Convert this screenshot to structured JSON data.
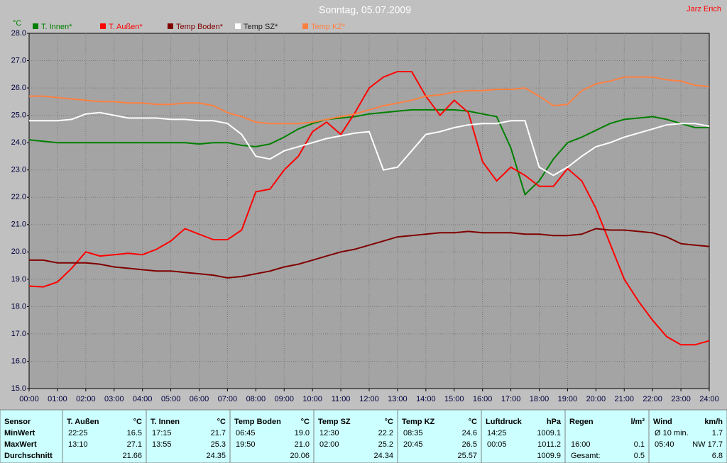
{
  "chart_data": {
    "type": "line",
    "title": "Sonntag, 05.07.2009",
    "author": "Jarz Erich",
    "y_label": "°C",
    "x": [
      0,
      0.5,
      1,
      1.5,
      2,
      2.5,
      3,
      3.5,
      4,
      4.5,
      5,
      5.5,
      6,
      6.5,
      7,
      7.5,
      8,
      8.5,
      9,
      9.5,
      10,
      10.5,
      11,
      11.5,
      12,
      12.5,
      13,
      13.5,
      14,
      14.5,
      15,
      15.5,
      16,
      16.5,
      17,
      17.5,
      18,
      18.5,
      19,
      19.5,
      20,
      20.5,
      21,
      21.5,
      22,
      22.5,
      23,
      23.5,
      24
    ],
    "series": [
      {
        "name": "T. Innen*",
        "color": "#008000",
        "values": [
          24.1,
          24.05,
          24.0,
          24.0,
          24.0,
          24.0,
          24.0,
          24.0,
          24.0,
          24.0,
          24.0,
          24.0,
          23.95,
          24.0,
          24.0,
          23.9,
          23.85,
          23.95,
          24.2,
          24.5,
          24.7,
          24.85,
          24.9,
          24.95,
          25.05,
          25.1,
          25.15,
          25.2,
          25.2,
          25.2,
          25.2,
          25.15,
          25.05,
          24.95,
          23.8,
          22.1,
          22.6,
          23.4,
          24.0,
          24.2,
          24.45,
          24.7,
          24.85,
          24.9,
          24.95,
          24.85,
          24.7,
          24.55,
          24.55
        ]
      },
      {
        "name": "T. Außen*",
        "color": "#ff0000",
        "values": [
          18.75,
          18.72,
          18.9,
          19.4,
          20.0,
          19.85,
          19.9,
          19.95,
          19.9,
          20.1,
          20.4,
          20.85,
          20.65,
          20.45,
          20.45,
          20.8,
          22.2,
          22.3,
          23.0,
          23.5,
          24.4,
          24.75,
          24.3,
          25.1,
          26.0,
          26.4,
          26.6,
          26.6,
          25.7,
          25.0,
          25.55,
          25.1,
          23.3,
          22.6,
          23.1,
          22.8,
          22.4,
          22.4,
          23.05,
          22.6,
          21.6,
          20.3,
          19.0,
          18.2,
          17.5,
          16.9,
          16.6,
          16.6,
          16.75
        ]
      },
      {
        "name": "Temp Boden*",
        "color": "#800000",
        "values": [
          19.7,
          19.7,
          19.6,
          19.6,
          19.6,
          19.55,
          19.45,
          19.4,
          19.35,
          19.3,
          19.3,
          19.25,
          19.2,
          19.15,
          19.05,
          19.1,
          19.2,
          19.3,
          19.45,
          19.55,
          19.7,
          19.85,
          20.0,
          20.1,
          20.25,
          20.4,
          20.55,
          20.6,
          20.65,
          20.7,
          20.7,
          20.75,
          20.7,
          20.7,
          20.7,
          20.65,
          20.65,
          20.6,
          20.6,
          20.65,
          20.85,
          20.8,
          20.8,
          20.75,
          20.7,
          20.55,
          20.3,
          20.25,
          20.2
        ]
      },
      {
        "name": "Temp SZ*",
        "color": "#ffffff",
        "values": [
          24.8,
          24.8,
          24.8,
          24.85,
          25.05,
          25.1,
          25.0,
          24.9,
          24.9,
          24.9,
          24.85,
          24.85,
          24.8,
          24.8,
          24.7,
          24.3,
          23.5,
          23.4,
          23.7,
          23.85,
          24.0,
          24.15,
          24.25,
          24.35,
          24.4,
          23.0,
          23.1,
          23.7,
          24.3,
          24.4,
          24.55,
          24.65,
          24.7,
          24.7,
          24.8,
          24.8,
          23.1,
          22.8,
          23.1,
          23.5,
          23.85,
          24.0,
          24.2,
          24.35,
          24.5,
          24.65,
          24.7,
          24.7,
          24.6
        ]
      },
      {
        "name": "Temp KZ*",
        "color": "#ff8040",
        "values": [
          25.7,
          25.7,
          25.65,
          25.6,
          25.55,
          25.5,
          25.5,
          25.45,
          25.45,
          25.4,
          25.4,
          25.45,
          25.45,
          25.35,
          25.1,
          24.95,
          24.75,
          24.7,
          24.7,
          24.7,
          24.75,
          24.85,
          24.95,
          25.05,
          25.2,
          25.35,
          25.45,
          25.55,
          25.7,
          25.75,
          25.85,
          25.9,
          25.9,
          25.95,
          25.95,
          26.0,
          25.7,
          25.35,
          25.4,
          25.9,
          26.15,
          26.25,
          26.4,
          26.4,
          26.4,
          26.3,
          26.25,
          26.1,
          26.05
        ]
      }
    ],
    "xlim": [
      0,
      24
    ],
    "xticks": [
      {
        "value": 0,
        "label": "00:00"
      },
      {
        "value": 1,
        "label": "01:00"
      },
      {
        "value": 2,
        "label": "02:00"
      },
      {
        "value": 3,
        "label": "03:00"
      },
      {
        "value": 4,
        "label": "04:00"
      },
      {
        "value": 5,
        "label": "05:00"
      },
      {
        "value": 6,
        "label": "06:00"
      },
      {
        "value": 7,
        "label": "07:00"
      },
      {
        "value": 8,
        "label": "08:00"
      },
      {
        "value": 9,
        "label": "09:00"
      },
      {
        "value": 10,
        "label": "10:00"
      },
      {
        "value": 11,
        "label": "11:00"
      },
      {
        "value": 12,
        "label": "12:00"
      },
      {
        "value": 13,
        "label": "13:00"
      },
      {
        "value": 14,
        "label": "14:00"
      },
      {
        "value": 15,
        "label": "15:00"
      },
      {
        "value": 16,
        "label": "16:00"
      },
      {
        "value": 17,
        "label": "17:00"
      },
      {
        "value": 18,
        "label": "18:00"
      },
      {
        "value": 19,
        "label": "19:00"
      },
      {
        "value": 20,
        "label": "20:00"
      },
      {
        "value": 21,
        "label": "21:00"
      },
      {
        "value": 22,
        "label": "22:00"
      },
      {
        "value": 23,
        "label": "23:00"
      },
      {
        "value": 24,
        "label": "24:00"
      }
    ],
    "ylim": [
      15,
      28
    ],
    "yticks": [
      {
        "value": 15,
        "label": "15.0"
      },
      {
        "value": 16,
        "label": "16.0"
      },
      {
        "value": 17,
        "label": "17.0"
      },
      {
        "value": 18,
        "label": "18.0"
      },
      {
        "value": 19,
        "label": "19.0"
      },
      {
        "value": 20,
        "label": "20.0"
      },
      {
        "value": 21,
        "label": "21.0"
      },
      {
        "value": 22,
        "label": "22.0"
      },
      {
        "value": 23,
        "label": "23.0"
      },
      {
        "value": 24,
        "label": "24.0"
      },
      {
        "value": 25,
        "label": "25.0"
      },
      {
        "value": 26,
        "label": "26.0"
      },
      {
        "value": 27,
        "label": "27.0"
      },
      {
        "value": 28,
        "label": "28.0"
      }
    ],
    "grid": true
  },
  "table": {
    "header": "Sensor",
    "row_labels": [
      "MinWert",
      "MaxWert",
      "Durchschnitt"
    ],
    "columns": [
      {
        "name": "T. Außen",
        "unit": "°C",
        "min": {
          "time": "22:25",
          "value": "16.5"
        },
        "max": {
          "time": "13:10",
          "value": "27.1"
        },
        "avg": {
          "value": "21.66"
        }
      },
      {
        "name": "T. Innen",
        "unit": "°C",
        "min": {
          "time": "17:15",
          "value": "21.7"
        },
        "max": {
          "time": "13:55",
          "value": "25.3"
        },
        "avg": {
          "value": "24.35"
        }
      },
      {
        "name": "Temp Boden",
        "unit": "°C",
        "min": {
          "time": "06:45",
          "value": "19.0"
        },
        "max": {
          "time": "19:50",
          "value": "21.0"
        },
        "avg": {
          "value": "20.06"
        }
      },
      {
        "name": "Temp SZ",
        "unit": "°C",
        "min": {
          "time": "12:30",
          "value": "22.2"
        },
        "max": {
          "time": "02:00",
          "value": "25.2"
        },
        "avg": {
          "value": "24.34"
        }
      },
      {
        "name": "Temp KZ",
        "unit": "°C",
        "min": {
          "time": "08:35",
          "value": "24.6"
        },
        "max": {
          "time": "20:45",
          "value": "26.5"
        },
        "avg": {
          "value": "25.57"
        }
      },
      {
        "name": "Luftdruck",
        "unit": "hPa",
        "min": {
          "time": "14:25",
          "value": "1009.1"
        },
        "max": {
          "time": "00:05",
          "value": "1011.2"
        },
        "avg": {
          "value": "1009.9"
        }
      },
      {
        "name": "Regen",
        "unit": "l/m²",
        "max": {
          "time": "16:00",
          "value": "0.1"
        },
        "avg": {
          "time": "Gesamt:",
          "value": "0.5"
        }
      },
      {
        "name": "Wind",
        "unit": "km/h",
        "min": {
          "time": "Ø 10 min.",
          "value": "1.7"
        },
        "max": {
          "time": "05:40",
          "value": "NW 17.7"
        },
        "avg": {
          "value": "6.8"
        }
      }
    ]
  }
}
